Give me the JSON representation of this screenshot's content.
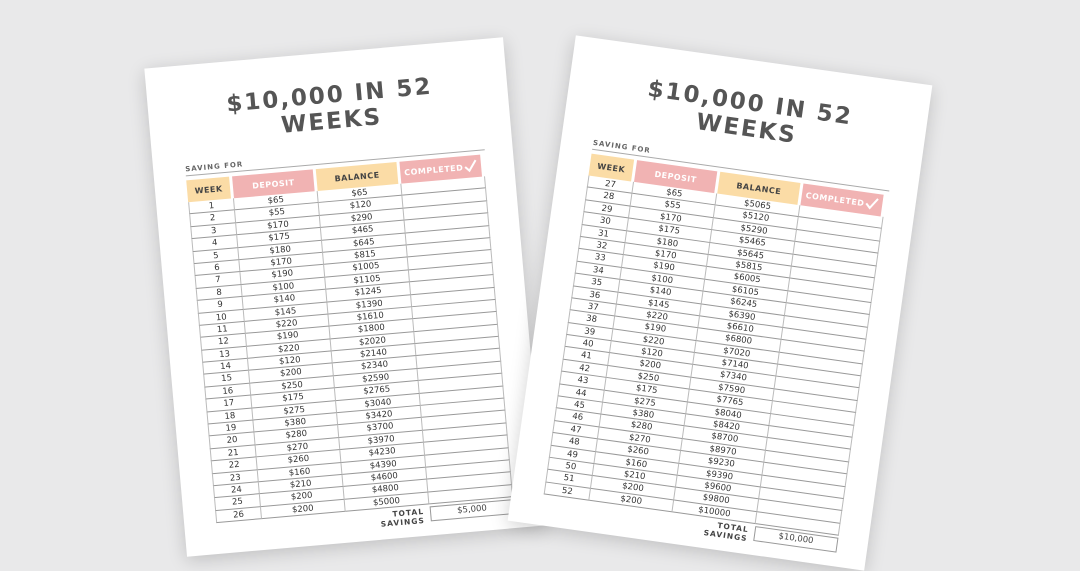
{
  "sheets": [
    {
      "title": "$10,000 IN 52 WEEKS",
      "saving_for": "SAVING FOR",
      "headers": [
        "WEEK",
        "DEPOSIT",
        "BALANCE",
        "COMPLETED"
      ],
      "rows": [
        [
          "1",
          "$65",
          "$65"
        ],
        [
          "2",
          "$55",
          "$120"
        ],
        [
          "3",
          "$170",
          "$290"
        ],
        [
          "4",
          "$175",
          "$465"
        ],
        [
          "5",
          "$180",
          "$645"
        ],
        [
          "6",
          "$170",
          "$815"
        ],
        [
          "7",
          "$190",
          "$1005"
        ],
        [
          "8",
          "$100",
          "$1105"
        ],
        [
          "9",
          "$140",
          "$1245"
        ],
        [
          "10",
          "$145",
          "$1390"
        ],
        [
          "11",
          "$220",
          "$1610"
        ],
        [
          "12",
          "$190",
          "$1800"
        ],
        [
          "13",
          "$220",
          "$2020"
        ],
        [
          "14",
          "$120",
          "$2140"
        ],
        [
          "15",
          "$200",
          "$2340"
        ],
        [
          "16",
          "$250",
          "$2590"
        ],
        [
          "17",
          "$175",
          "$2765"
        ],
        [
          "18",
          "$275",
          "$3040"
        ],
        [
          "19",
          "$380",
          "$3420"
        ],
        [
          "20",
          "$280",
          "$3700"
        ],
        [
          "21",
          "$270",
          "$3970"
        ],
        [
          "22",
          "$260",
          "$4230"
        ],
        [
          "23",
          "$160",
          "$4390"
        ],
        [
          "24",
          "$210",
          "$4600"
        ],
        [
          "25",
          "$200",
          "$4800"
        ],
        [
          "26",
          "$200",
          "$5000"
        ]
      ],
      "total_label": "TOTAL SAVINGS",
      "total": "$5,000"
    },
    {
      "title": "$10,000 IN 52 WEEKS",
      "saving_for": "SAVING FOR",
      "headers": [
        "WEEK",
        "DEPOSIT",
        "BALANCE",
        "COMPLETED"
      ],
      "rows": [
        [
          "27",
          "$65",
          "$5065"
        ],
        [
          "28",
          "$55",
          "$5120"
        ],
        [
          "29",
          "$170",
          "$5290"
        ],
        [
          "30",
          "$175",
          "$5465"
        ],
        [
          "31",
          "$180",
          "$5645"
        ],
        [
          "32",
          "$170",
          "$5815"
        ],
        [
          "33",
          "$190",
          "$6005"
        ],
        [
          "34",
          "$100",
          "$6105"
        ],
        [
          "35",
          "$140",
          "$6245"
        ],
        [
          "36",
          "$145",
          "$6390"
        ],
        [
          "37",
          "$220",
          "$6610"
        ],
        [
          "38",
          "$190",
          "$6800"
        ],
        [
          "39",
          "$220",
          "$7020"
        ],
        [
          "40",
          "$120",
          "$7140"
        ],
        [
          "41",
          "$200",
          "$7340"
        ],
        [
          "42",
          "$250",
          "$7590"
        ],
        [
          "43",
          "$175",
          "$7765"
        ],
        [
          "44",
          "$275",
          "$8040"
        ],
        [
          "45",
          "$380",
          "$8420"
        ],
        [
          "46",
          "$280",
          "$8700"
        ],
        [
          "47",
          "$270",
          "$8970"
        ],
        [
          "48",
          "$260",
          "$9230"
        ],
        [
          "49",
          "$160",
          "$9390"
        ],
        [
          "50",
          "$210",
          "$9600"
        ],
        [
          "51",
          "$200",
          "$9800"
        ],
        [
          "52",
          "$200",
          "$10000"
        ]
      ],
      "total_label": "TOTAL SAVINGS",
      "total": "$10,000"
    }
  ]
}
